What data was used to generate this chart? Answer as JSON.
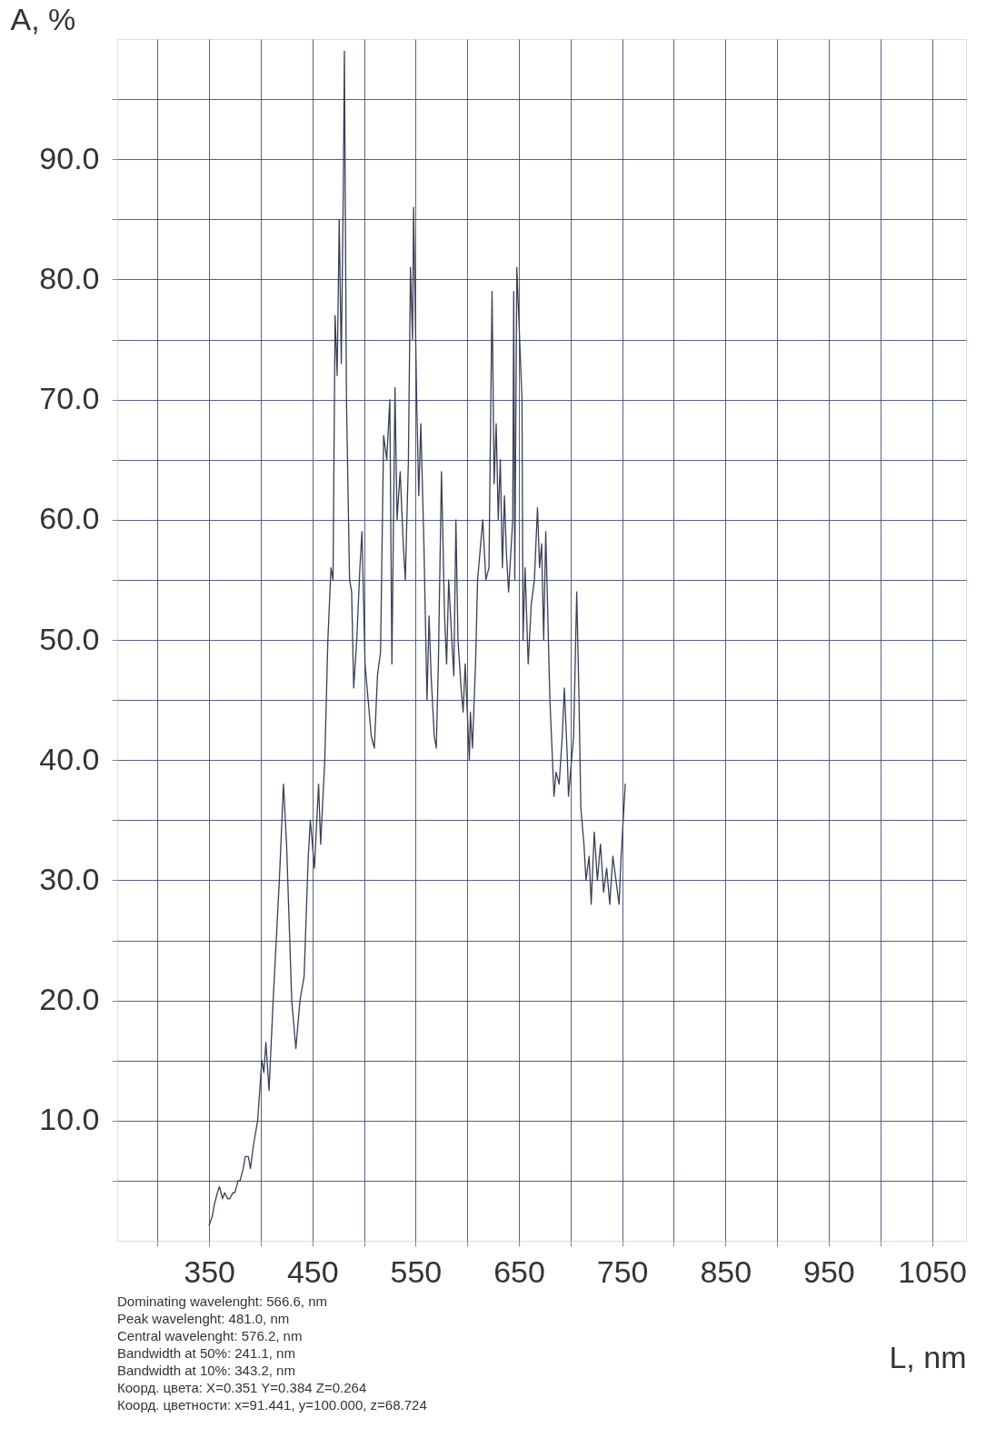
{
  "chart_data": {
    "type": "line",
    "xlabel": "L, nm",
    "ylabel": "A, %",
    "x": [
      350,
      353,
      355,
      358,
      360,
      363,
      365,
      368,
      370,
      373,
      375,
      378,
      380,
      383,
      385,
      388,
      390,
      393,
      397,
      401,
      403,
      405,
      408,
      412,
      418,
      422,
      425,
      430,
      434,
      438,
      442,
      446,
      448,
      452,
      456,
      458,
      462,
      465,
      468,
      470,
      472,
      474,
      476,
      478,
      480,
      481,
      483,
      486,
      488,
      490,
      493,
      496,
      498,
      501,
      504,
      507,
      510,
      513,
      516,
      519,
      522,
      525,
      527,
      530,
      532,
      535,
      538,
      540,
      543,
      545,
      547,
      548,
      551,
      553,
      555,
      558,
      561,
      563,
      565,
      568,
      570,
      572,
      575,
      578,
      580,
      582,
      585,
      587,
      589,
      591,
      594,
      596,
      598,
      602,
      603,
      605,
      608,
      610,
      615,
      618,
      621,
      624,
      626,
      628,
      630,
      632,
      634,
      636,
      638,
      640,
      644,
      645,
      646,
      648,
      653,
      654,
      656,
      659,
      662,
      665,
      668,
      670,
      672,
      674,
      676,
      678,
      680,
      684,
      686,
      689,
      692,
      694,
      697,
      698,
      703,
      706,
      708,
      710,
      713,
      715,
      718,
      720,
      723,
      726,
      729,
      732,
      735,
      738,
      741,
      744,
      747,
      749,
      753
    ],
    "series": [
      {
        "color": "#3a3f55",
        "values": [
          1.3,
          2,
          3,
          4,
          4.5,
          3.5,
          4,
          3.5,
          3.5,
          4,
          4,
          5,
          5,
          6,
          7,
          7,
          6,
          8,
          10,
          15,
          14,
          16.5,
          12.5,
          20,
          30,
          38,
          33,
          20,
          16,
          20,
          22,
          32,
          35,
          31,
          38,
          33,
          40,
          50,
          56,
          55,
          77,
          72,
          85,
          73,
          88,
          99,
          70,
          55,
          54,
          46,
          50,
          56,
          59,
          48,
          45,
          42,
          41,
          47,
          49,
          67,
          65,
          70,
          48,
          71,
          60,
          64,
          58,
          55,
          65,
          81,
          75,
          86,
          70,
          62,
          68,
          58,
          45,
          52,
          47,
          42,
          41,
          48,
          64,
          52,
          48,
          55,
          50,
          47,
          60,
          50,
          46,
          44,
          48,
          40,
          44,
          41,
          48,
          55,
          60,
          55,
          56,
          79,
          63,
          68,
          60,
          65,
          56,
          62,
          57,
          54,
          60,
          79,
          55,
          81,
          70,
          50,
          56,
          48,
          53,
          55,
          61,
          56,
          58,
          50,
          59,
          52,
          45,
          37,
          39,
          38,
          42,
          46,
          40,
          37,
          42,
          54,
          46,
          36,
          33,
          30,
          32,
          28,
          34,
          30,
          33,
          29,
          31,
          28,
          32,
          30,
          28,
          32,
          38
        ]
      }
    ],
    "xlim": [
      261,
      1083
    ],
    "xticks": [
      {
        "value": 300,
        "label": null
      },
      350,
      {
        "value": 400,
        "label": null
      },
      450,
      {
        "value": 500,
        "label": null
      },
      550,
      {
        "value": 600,
        "label": null
      },
      650,
      {
        "value": 700,
        "label": null
      },
      750,
      {
        "value": 800,
        "label": null
      },
      850,
      {
        "value": 900,
        "label": null
      },
      950,
      {
        "value": 1000,
        "label": null
      },
      1050
    ],
    "ylim": [
      0,
      100
    ],
    "yticks": [
      {
        "value": 5,
        "label": null
      },
      {
        "value": 10,
        "label": "10.0"
      },
      {
        "value": 15,
        "label": null
      },
      {
        "value": 20,
        "label": "20.0"
      },
      {
        "value": 25,
        "label": null
      },
      {
        "value": 30,
        "label": "30.0"
      },
      {
        "value": 35,
        "label": null
      },
      {
        "value": 40,
        "label": "40.0"
      },
      {
        "value": 45,
        "label": null
      },
      {
        "value": 50,
        "label": "50.0"
      },
      {
        "value": 55,
        "label": null
      },
      {
        "value": 60,
        "label": "60.0"
      },
      {
        "value": 65,
        "label": null
      },
      {
        "value": 70,
        "label": "70.0"
      },
      {
        "value": 75,
        "label": null
      },
      {
        "value": 80,
        "label": "80.0"
      },
      {
        "value": 85,
        "label": null
      },
      {
        "value": 90,
        "label": "90.0"
      },
      {
        "value": 95,
        "label": null
      }
    ],
    "grid": true,
    "marker": "none",
    "line_style": "solid",
    "annotations": [
      "Dominating wavelenght: 566.6, nm",
      "Peak wavelenght:         481.0, nm",
      "Central wavelenght:      576.2, nm",
      "Bandwidth at 50%:        241.1, nm",
      "Bandwidth at 10%:        343.2, nm",
      "Коорд. цвета: X=0.351 Y=0.384 Z=0.264",
      "Коорд. цветности: x=91.441, y=100.000, z=68.724"
    ]
  }
}
